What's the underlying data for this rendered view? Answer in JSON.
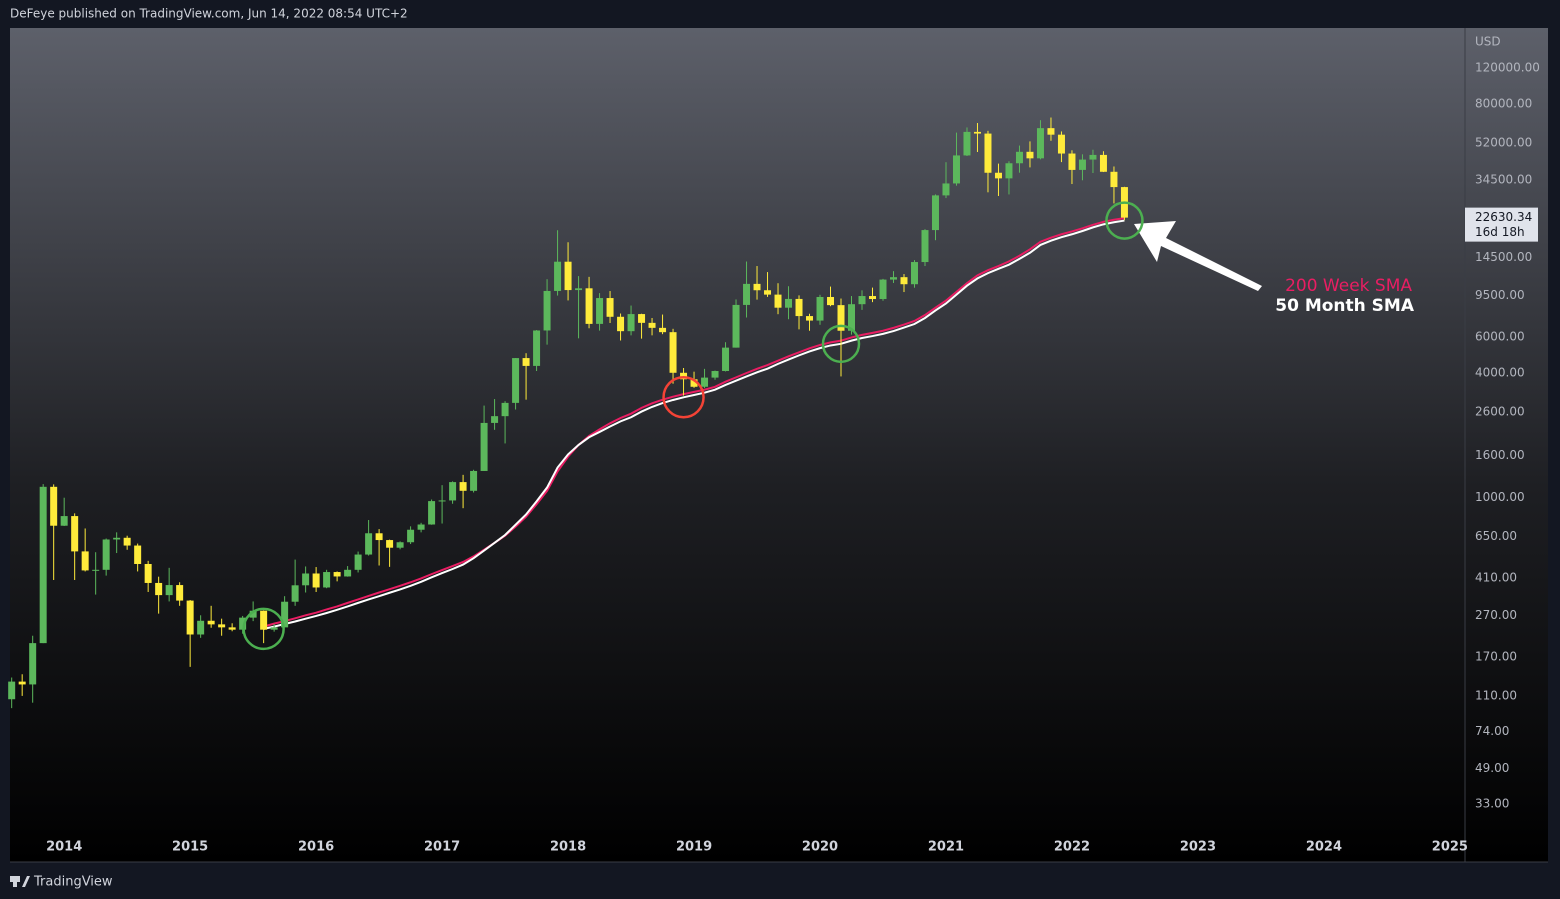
{
  "header": {
    "text": "DeFeye published on TradingView.com, Jun 14, 2022 08:54 UTC+2"
  },
  "footer": {
    "brand": "TradingView"
  },
  "chart_data": {
    "type": "candlestick",
    "currency": "USD",
    "log_scale": true,
    "grid": false,
    "up_color": "#5cb85c",
    "down_color": "#ffeb3b",
    "x": [
      "2013-08",
      "2013-09",
      "2013-10",
      "2013-11",
      "2013-12",
      "2014-01",
      "2014-02",
      "2014-03",
      "2014-04",
      "2014-05",
      "2014-06",
      "2014-07",
      "2014-08",
      "2014-09",
      "2014-10",
      "2014-11",
      "2014-12",
      "2015-01",
      "2015-02",
      "2015-03",
      "2015-04",
      "2015-05",
      "2015-06",
      "2015-07",
      "2015-08",
      "2015-09",
      "2015-10",
      "2015-11",
      "2015-12",
      "2016-01",
      "2016-02",
      "2016-03",
      "2016-04",
      "2016-05",
      "2016-06",
      "2016-07",
      "2016-08",
      "2016-09",
      "2016-10",
      "2016-11",
      "2016-12",
      "2017-01",
      "2017-02",
      "2017-03",
      "2017-04",
      "2017-05",
      "2017-06",
      "2017-07",
      "2017-08",
      "2017-09",
      "2017-10",
      "2017-11",
      "2017-12",
      "2018-01",
      "2018-02",
      "2018-03",
      "2018-04",
      "2018-05",
      "2018-06",
      "2018-07",
      "2018-08",
      "2018-09",
      "2018-10",
      "2018-11",
      "2018-12",
      "2019-01",
      "2019-02",
      "2019-03",
      "2019-04",
      "2019-05",
      "2019-06",
      "2019-07",
      "2019-08",
      "2019-09",
      "2019-10",
      "2019-11",
      "2019-12",
      "2020-01",
      "2020-02",
      "2020-03",
      "2020-04",
      "2020-05",
      "2020-06",
      "2020-07",
      "2020-08",
      "2020-09",
      "2020-10",
      "2020-11",
      "2020-12",
      "2021-01",
      "2021-02",
      "2021-03",
      "2021-04",
      "2021-05",
      "2021-06",
      "2021-07",
      "2021-08",
      "2021-09",
      "2021-10",
      "2021-11",
      "2021-12",
      "2022-01",
      "2022-02",
      "2022-03",
      "2022-04",
      "2022-05",
      "2022-06"
    ],
    "open": [
      106,
      129,
      125,
      198,
      1129,
      732,
      815,
      550,
      445,
      448,
      628,
      640,
      587,
      478,
      387,
      338,
      378,
      318,
      218,
      254,
      244,
      236,
      230,
      263,
      284,
      230,
      236,
      314,
      377,
      430,
      368,
      437,
      416,
      448,
      531,
      673,
      624,
      573,
      609,
      700,
      742,
      963,
      970,
      1190,
      1080,
      1347,
      2300,
      2480,
      2875,
      4735,
      4340,
      6440,
      10000,
      13850,
      10100,
      10300,
      6930,
      9240,
      7500,
      6390,
      7730,
      7010,
      6630,
      6320,
      4020,
      3740,
      3440,
      3810,
      4100,
      5320,
      8560,
      10820,
      10080,
      9600,
      8300,
      9150,
      7560,
      7190,
      9350,
      8540,
      6420,
      8630,
      9450,
      9140,
      11350,
      11660,
      10780,
      13800,
      19700,
      28990,
      33110,
      45240,
      58800,
      57700,
      37300,
      35040,
      41460,
      47100,
      43800,
      61300,
      57000,
      46200,
      38500,
      43200,
      45500,
      37700,
      31800
    ],
    "high": [
      135,
      140,
      215,
      1163,
      1160,
      1000,
      840,
      710,
      545,
      635,
      680,
      655,
      600,
      495,
      415,
      458,
      390,
      320,
      270,
      300,
      260,
      247,
      268,
      315,
      285,
      245,
      334,
      502,
      465,
      462,
      448,
      440,
      467,
      549,
      780,
      705,
      627,
      615,
      727,
      756,
      980,
      1150,
      1200,
      1290,
      1365,
      2790,
      3000,
      2930,
      4740,
      5000,
      6470,
      11400,
      19666,
      17200,
      11800,
      11700,
      9760,
      9990,
      7780,
      8500,
      7760,
      7400,
      7690,
      6560,
      4240,
      4070,
      4200,
      4120,
      5650,
      9100,
      13880,
      13200,
      12340,
      10900,
      10540,
      9520,
      7760,
      9580,
      10500,
      9190,
      9450,
      10070,
      10380,
      11440,
      12470,
      12070,
      14100,
      19900,
      29300,
      41950,
      58330,
      61780,
      64900,
      59500,
      41300,
      42400,
      50500,
      52900,
      67000,
      69000,
      59100,
      47900,
      45800,
      48200,
      47400,
      40000,
      31900
    ],
    "low": [
      96,
      110,
      102,
      198,
      400,
      730,
      400,
      440,
      340,
      420,
      540,
      560,
      440,
      350,
      275,
      315,
      300,
      152,
      210,
      235,
      215,
      226,
      220,
      253,
      198,
      225,
      236,
      300,
      348,
      350,
      365,
      394,
      415,
      435,
      525,
      470,
      463,
      563,
      597,
      680,
      740,
      750,
      935,
      890,
      1060,
      1347,
      2130,
      1830,
      2670,
      2980,
      4100,
      5500,
      9500,
      9000,
      5900,
      6600,
      6430,
      7000,
      5760,
      6100,
      5880,
      6100,
      6180,
      3560,
      3120,
      3400,
      3390,
      3720,
      4080,
      5320,
      7440,
      9080,
      9360,
      7720,
      7300,
      6520,
      6420,
      6860,
      8440,
      3860,
      6150,
      8100,
      8830,
      8970,
      10930,
      9880,
      10370,
      13200,
      17600,
      28130,
      32300,
      44950,
      47000,
      30000,
      28800,
      29300,
      37330,
      39600,
      43300,
      53250,
      42000,
      32900,
      34300,
      37200,
      37600,
      26500,
      22000
    ],
    "close": [
      129,
      125,
      198,
      1129,
      732,
      815,
      550,
      445,
      448,
      628,
      640,
      587,
      478,
      387,
      338,
      378,
      318,
      218,
      254,
      244,
      236,
      230,
      263,
      284,
      230,
      236,
      314,
      377,
      430,
      368,
      437,
      416,
      448,
      531,
      673,
      624,
      573,
      609,
      700,
      742,
      963,
      970,
      1190,
      1080,
      1347,
      2300,
      2480,
      2875,
      4735,
      4340,
      6440,
      10000,
      13850,
      10100,
      10300,
      6930,
      9240,
      7500,
      6390,
      7730,
      7010,
      6630,
      6320,
      4020,
      3740,
      3440,
      3810,
      4100,
      5320,
      8560,
      10820,
      10080,
      9600,
      8300,
      9150,
      7560,
      7190,
      9350,
      8540,
      6420,
      8630,
      9450,
      9140,
      11350,
      11660,
      10780,
      13800,
      19700,
      28990,
      33110,
      45240,
      58800,
      57700,
      37300,
      35040,
      41460,
      47100,
      43800,
      61300,
      57000,
      46200,
      38500,
      43200,
      45500,
      37700,
      31800,
      22630.34
    ],
    "countdown": "16d 18h",
    "lines": [
      {
        "name": "200 Week SMA",
        "color": "#e91e63",
        "values": [
          null,
          null,
          null,
          null,
          null,
          null,
          null,
          null,
          null,
          null,
          null,
          null,
          null,
          null,
          null,
          null,
          null,
          null,
          null,
          null,
          null,
          null,
          null,
          null,
          238,
          246,
          253,
          261,
          270,
          278,
          288,
          298,
          310,
          322,
          335,
          348,
          361,
          375,
          390,
          407,
          427,
          447,
          467,
          489,
          520,
          560,
          605,
          655,
          725,
          810,
          930,
          1080,
          1340,
          1580,
          1800,
          1990,
          2140,
          2290,
          2430,
          2550,
          2720,
          2860,
          2980,
          3080,
          3170,
          3250,
          3330,
          3440,
          3640,
          3820,
          4010,
          4200,
          4380,
          4600,
          4830,
          5050,
          5280,
          5480,
          5640,
          5750,
          5960,
          6130,
          6270,
          6420,
          6630,
          6880,
          7160,
          7650,
          8300,
          8980,
          9900,
          10900,
          11900,
          12600,
          13200,
          13900,
          14800,
          15900,
          17300,
          18100,
          18800,
          19400,
          20100,
          20900,
          21600,
          22100,
          22500
        ]
      },
      {
        "name": "50 Month SMA",
        "color": "#ffffff",
        "values": [
          null,
          null,
          null,
          null,
          null,
          null,
          null,
          null,
          null,
          null,
          null,
          null,
          null,
          null,
          null,
          null,
          null,
          null,
          null,
          null,
          null,
          null,
          null,
          null,
          232,
          238,
          245,
          252,
          260,
          268,
          277,
          287,
          298,
          310,
          322,
          334,
          347,
          360,
          375,
          392,
          412,
          432,
          452,
          475,
          510,
          555,
          605,
          660,
          740,
          830,
          960,
          1120,
          1400,
          1620,
          1800,
          1960,
          2080,
          2210,
          2340,
          2450,
          2610,
          2750,
          2870,
          2970,
          3060,
          3140,
          3220,
          3330,
          3510,
          3680,
          3860,
          4040,
          4210,
          4440,
          4660,
          4880,
          5100,
          5290,
          5450,
          5550,
          5750,
          5920,
          6050,
          6200,
          6400,
          6650,
          6920,
          7400,
          8050,
          8700,
          9600,
          10600,
          11500,
          12200,
          12800,
          13400,
          14300,
          15300,
          16700,
          17500,
          18200,
          18800,
          19500,
          20300,
          21000,
          21500,
          21900
        ]
      }
    ],
    "xlim": [
      2013.57,
      2025.12
    ],
    "xticks": [
      2014,
      2015,
      2016,
      2017,
      2018,
      2019,
      2020,
      2021,
      2022,
      2023,
      2024,
      2025
    ],
    "ylim": [
      17.3,
      187000
    ],
    "yticks": [
      {
        "value": 120000,
        "label": "120000.00"
      },
      {
        "value": 80000,
        "label": "80000.00"
      },
      {
        "value": 52000,
        "label": "52000.00"
      },
      {
        "value": 34500,
        "label": "34500.00"
      },
      {
        "value": 14500,
        "label": "14500.00"
      },
      {
        "value": 9500,
        "label": "9500.00"
      },
      {
        "value": 6000,
        "label": "6000.00"
      },
      {
        "value": 4000,
        "label": "4000.00"
      },
      {
        "value": 2600,
        "label": "2600.00"
      },
      {
        "value": 1600,
        "label": "1600.00"
      },
      {
        "value": 1000,
        "label": "1000.00"
      },
      {
        "value": 650,
        "label": "650.00"
      },
      {
        "value": 410,
        "label": "410.00"
      },
      {
        "value": 270,
        "label": "270.00"
      },
      {
        "value": 170,
        "label": "170.00"
      },
      {
        "value": 110,
        "label": "110.00"
      },
      {
        "value": 74,
        "label": "74.00"
      },
      {
        "value": 49,
        "label": "49.00"
      },
      {
        "value": 33,
        "label": "33.00"
      }
    ]
  }
}
